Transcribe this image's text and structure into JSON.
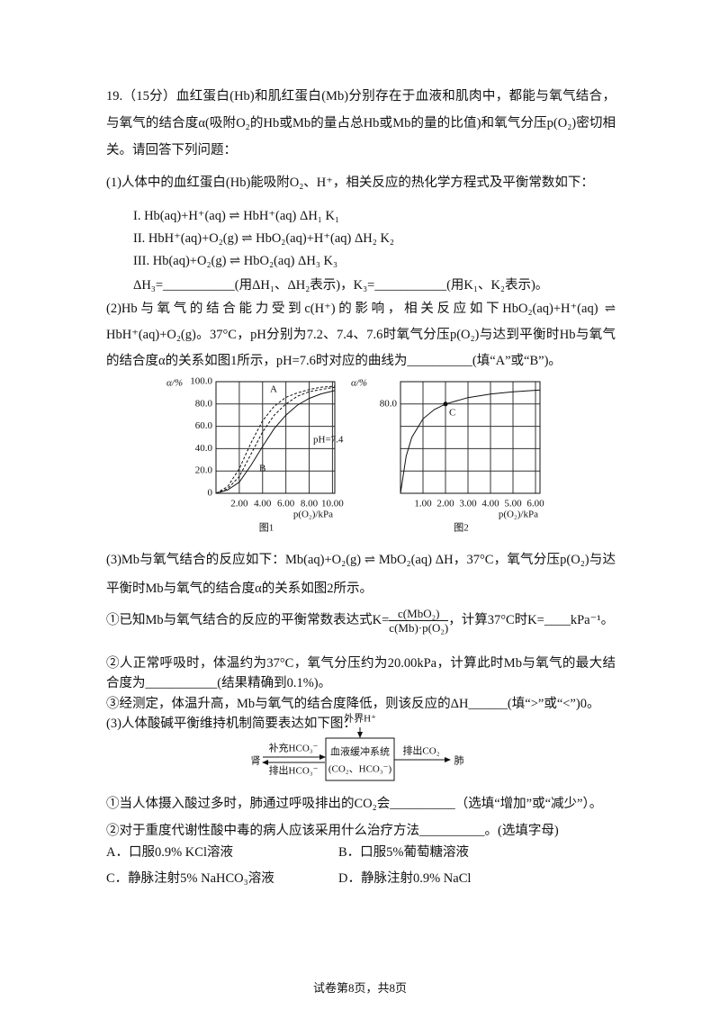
{
  "paragraphs": [
    "19.（15分）血红蛋白(Hb)和肌红蛋白(Mb)分别存在于血液和肌肉中，都能与氧气结合，与氧气的结合度α(吸附O₂的Hb或Mb的量占总Hb或Mb的量的比值)和氧气分压p(O₂)密切相关。请回答下列问题：",
    "(1)人体中的血红蛋白(Hb)能吸附O₂、H⁺，相关反应的热化学方程式及平衡常数如下：",
    "I.  Hb(aq)+H⁺(aq) ⇌ HbH⁺(aq)  ΔH₁   K₁",
    "II.  HbH⁺(aq)+O₂(g) ⇌ HbO₂(aq)+H⁺(aq)  ΔH₂   K₂",
    "III.  Hb(aq)+O₂(g) ⇌ HbO₂(aq)  ΔH₃   K₃",
    "ΔH₃=___________(用ΔH₁、ΔH₂表示)，K₃=___________(用K₁、K₂表示)。",
    "(2)Hb与氧气的结合能力受到c(H⁺)的影响，相关反应如下HbO₂(aq)+H⁺(aq) ⇌ HbH⁺(aq)+O₂(g)。37°C，pH分别为7.2、7.4、7.6时氧气分压p(O₂)与达到平衡时Hb与氧气的结合度α的关系如图1所示，pH=7.6时对应的曲线为__________(填“A”或“B”)。",
    "(3)Mb与氧气结合的反应如下：Mb(aq)+O₂(g) ⇌ MbO₂(aq)  ΔH，37°C，氧气分压p(O₂)与达平衡时Mb与氧气的结合度α的关系如图2所示。"
  ],
  "k_expression": {
    "before": "①已知Mb与氧气结合的反应的平衡常数表达式K=",
    "numerator": "c(MbO₂)",
    "denominator": "c(Mb)·p(O₂)",
    "after": "，计算37°C时K=____kPa⁻¹。"
  },
  "paragraphs_2": [
    "②人正常呼吸时，体温约为37°C，氧气分压约为20.00kPa，计算此时Mb与氧气的最大结合度为___________(结果精确到0.1%)。",
    "③经测定，体温升高，Mb与氧气的结合度降低，则该反应的ΔH______(填“>”或“<”)0。",
    "(3)人体酸碱平衡维持机制简要表达如下图："
  ],
  "diagram": {
    "input": "外界H⁺",
    "box_line1": "血液缓冲系统",
    "box_line2": "(CO₂、HCO₃⁻)",
    "left_node": "肾",
    "left_top": "补充HCO₃⁻",
    "left_bottom": "排出HCO₃⁻",
    "right_arrow": "排出CO₂",
    "right_node": "肺"
  },
  "paragraphs_3": [
    "①当人体摄入酸过多时，肺通过呼吸排出的CO₂会__________（选填“增加”或“减少”）。",
    "②对于重度代谢性酸中毒的病人应该采用什么治疗方法__________。(选填字母)"
  ],
  "options": [
    "A．口服0.9% KCl溶液",
    "B．口服5%葡萄糖溶液",
    "C．静脉注射5%  NaHCO₃溶液",
    "D．静脉注射0.9% NaCl"
  ],
  "figures": [
    {
      "caption": "图1",
      "ylabel": "α/%",
      "xlabel": "p(O₂)/kPa",
      "xlim": [
        0,
        10.2
      ],
      "ylim": [
        0,
        100
      ],
      "xticks": [
        {
          "value": 2,
          "label": "2.00"
        },
        {
          "value": 4,
          "label": "4.00"
        },
        {
          "value": 6,
          "label": "6.00"
        },
        {
          "value": 8,
          "label": "8.00"
        },
        {
          "value": 10,
          "label": "10.00"
        }
      ],
      "yticks": [
        0,
        {
          "value": 20,
          "label": "20.0"
        },
        {
          "value": 40,
          "label": "40.0"
        },
        {
          "value": 60,
          "label": "60.0"
        },
        {
          "value": 80,
          "label": "80.0"
        },
        {
          "value": 100,
          "label": "100.0"
        }
      ],
      "curves": [
        {
          "name": "A",
          "x": [
            0,
            1,
            2,
            3,
            4,
            5,
            6,
            7,
            8,
            9,
            10.2
          ],
          "y": [
            0,
            6,
            22,
            45,
            65,
            78,
            86,
            90,
            93,
            95,
            96
          ]
        },
        {
          "name": "pH=7.4",
          "x": [
            0,
            1,
            2,
            3,
            4,
            5,
            6,
            7,
            8,
            9,
            10.2
          ],
          "y": [
            0,
            4,
            15,
            35,
            55,
            70,
            80,
            87,
            91,
            93,
            95
          ]
        },
        {
          "name": "B",
          "x": [
            0,
            1,
            2,
            3,
            4,
            5,
            6,
            7,
            8,
            9,
            10.2
          ],
          "y": [
            0,
            3,
            10,
            25,
            42,
            58,
            70,
            79,
            85,
            89,
            92
          ]
        }
      ]
    },
    {
      "caption": "图2",
      "ylabel": "α/%",
      "xlabel": "p(O₂)/kPa",
      "xlim": [
        0,
        6.2
      ],
      "ylim": [
        0,
        100
      ],
      "xticks": [
        {
          "value": 1,
          "label": "1.00"
        },
        {
          "value": 2,
          "label": "2.00"
        },
        {
          "value": 3,
          "label": "3.00"
        },
        {
          "value": 4,
          "label": "4.00"
        },
        {
          "value": 5,
          "label": "5.00"
        },
        {
          "value": 6,
          "label": "6.00"
        }
      ],
      "yticks": [
        {
          "value": 80,
          "label": "80.0"
        }
      ],
      "point": {
        "name": "C",
        "x": 2,
        "y": 80
      },
      "curves": [
        {
          "x": [
            0,
            0.25,
            0.5,
            1,
            1.5,
            2,
            3,
            4,
            5,
            6.2
          ],
          "y": [
            0,
            33.3,
            50,
            66.7,
            75,
            80,
            85.7,
            88.9,
            90.9,
            92.5
          ]
        }
      ]
    }
  ],
  "footer": "试卷第8页，共8页"
}
